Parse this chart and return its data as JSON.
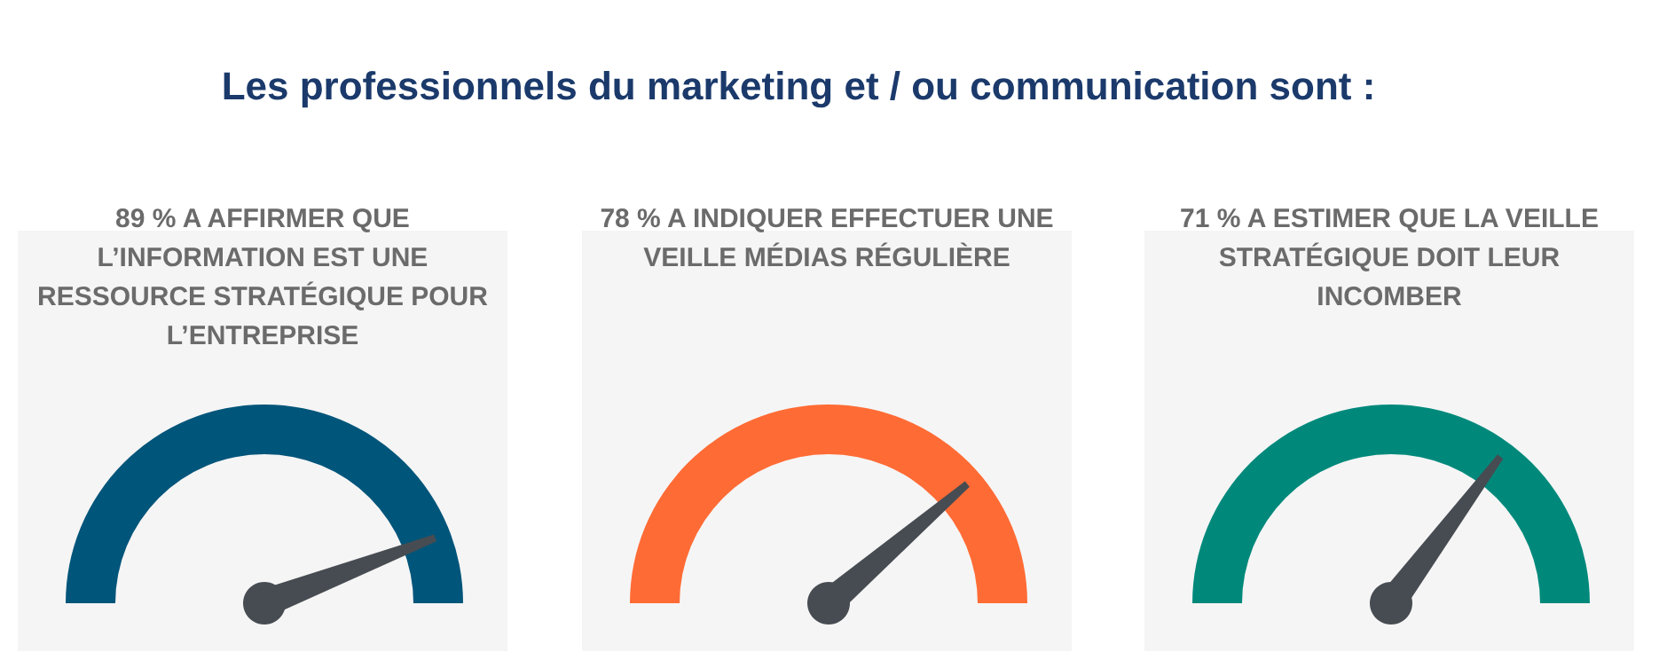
{
  "chart_data": [
    {
      "type": "other",
      "title": "Les professionnels du marketing et / ou communication sont :"
    },
    {
      "type": "other",
      "title": "A AFFIRMER QUE L’INFORMATION EST UNE RESSOURCE STRATÉGIQUE POUR L’ENTREPRISE",
      "values": [
        89
      ],
      "value_labels": [
        "89 %"
      ],
      "color": "#00557a"
    },
    {
      "type": "other",
      "title": "A INDIQUER EFFECTUER UNE VEILLE MÉDIAS RÉGULIÈRE",
      "values": [
        78
      ],
      "value_labels": [
        "78 %"
      ],
      "color": "#ff6b35"
    },
    {
      "type": "other",
      "title": "A ESTIMER QUE LA VEILLE STRATÉGIQUE DOIT LEUR INCOMBER",
      "values": [
        71
      ],
      "value_labels": [
        "71 %"
      ],
      "color": "#00897b"
    }
  ]
}
